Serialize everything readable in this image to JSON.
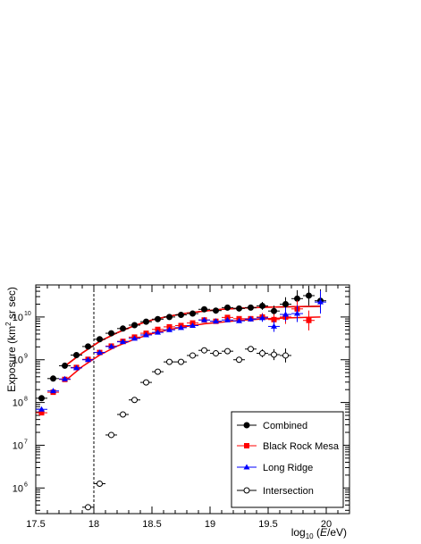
{
  "chart_data": {
    "type": "scatter",
    "title": "",
    "xlabel": "log10 (E/eV)",
    "ylabel": "Exposure (km2 sr sec)",
    "xlim": [
      17.5,
      20.2
    ],
    "ylim_log10": [
      5.4,
      10.75
    ],
    "y_scale": "log",
    "x_ticks": [
      17.5,
      18,
      18.5,
      19,
      19.5,
      20
    ],
    "x_tick_labels": [
      "17.5",
      "18",
      "18.5",
      "19",
      "19.5",
      "20"
    ],
    "y_ticks_exp": [
      6,
      7,
      8,
      9,
      10
    ],
    "y_tick_bases": [
      "10",
      "10",
      "10",
      "10",
      "10"
    ],
    "y_tick_exps": [
      "6",
      "7",
      "8",
      "9",
      "10"
    ],
    "reference_line_x": 18.0,
    "legend_placement": "bottom-right",
    "series": [
      {
        "name": "Combined",
        "color": "#000000",
        "marker": "circle-filled",
        "log10_values": [
          [
            17.55,
            8.1
          ],
          [
            17.65,
            8.56
          ],
          [
            17.75,
            8.86
          ],
          [
            17.85,
            9.11
          ],
          [
            17.95,
            9.31
          ],
          [
            18.05,
            9.48
          ],
          [
            18.15,
            9.62
          ],
          [
            18.25,
            9.73
          ],
          [
            18.35,
            9.81
          ],
          [
            18.45,
            9.89
          ],
          [
            18.55,
            9.95
          ],
          [
            18.65,
            10.0
          ],
          [
            18.75,
            10.05
          ],
          [
            18.85,
            10.08
          ],
          [
            18.95,
            10.18
          ],
          [
            19.05,
            10.15
          ],
          [
            19.15,
            10.22
          ],
          [
            19.25,
            10.2
          ],
          [
            19.35,
            10.22
          ],
          [
            19.45,
            10.26
          ],
          [
            19.55,
            10.14
          ],
          [
            19.65,
            10.3
          ],
          [
            19.75,
            10.43
          ],
          [
            19.85,
            10.5
          ],
          [
            19.95,
            10.38
          ]
        ]
      },
      {
        "name": "Black Rock Mesa",
        "color": "#ff0000",
        "marker": "square-filled",
        "log10_values": [
          [
            17.55,
            7.76
          ],
          [
            17.65,
            8.24
          ],
          [
            17.75,
            8.54
          ],
          [
            17.85,
            8.82
          ],
          [
            17.95,
            9.01
          ],
          [
            18.05,
            9.17
          ],
          [
            18.15,
            9.32
          ],
          [
            18.25,
            9.43
          ],
          [
            18.35,
            9.53
          ],
          [
            18.45,
            9.62
          ],
          [
            18.55,
            9.71
          ],
          [
            18.65,
            9.77
          ],
          [
            18.75,
            9.8
          ],
          [
            18.85,
            9.86
          ],
          [
            18.95,
            9.93
          ],
          [
            19.05,
            9.9
          ],
          [
            19.15,
            9.99
          ],
          [
            19.25,
            9.96
          ],
          [
            19.35,
            9.96
          ],
          [
            19.45,
            10.0
          ],
          [
            19.55,
            9.94
          ],
          [
            19.65,
            10.0
          ],
          [
            19.75,
            10.19
          ],
          [
            19.85,
            9.92
          ]
        ]
      },
      {
        "name": "Long Ridge",
        "color": "#0000ff",
        "marker": "triangle-filled",
        "log10_values": [
          [
            17.55,
            7.84
          ],
          [
            17.65,
            8.27
          ],
          [
            17.75,
            8.55
          ],
          [
            17.85,
            8.81
          ],
          [
            17.95,
            9.0
          ],
          [
            18.05,
            9.17
          ],
          [
            18.15,
            9.31
          ],
          [
            18.25,
            9.42
          ],
          [
            18.35,
            9.5
          ],
          [
            18.45,
            9.58
          ],
          [
            18.55,
            9.64
          ],
          [
            18.65,
            9.7
          ],
          [
            18.75,
            9.75
          ],
          [
            18.85,
            9.8
          ],
          [
            18.95,
            9.93
          ],
          [
            19.05,
            9.9
          ],
          [
            19.15,
            9.93
          ],
          [
            19.25,
            9.91
          ],
          [
            19.35,
            9.95
          ],
          [
            19.45,
            9.98
          ],
          [
            19.55,
            9.78
          ],
          [
            19.65,
            10.06
          ],
          [
            19.75,
            10.08
          ],
          [
            19.95,
            10.35
          ]
        ]
      },
      {
        "name": "Intersection",
        "color": "#000000",
        "marker": "circle-open",
        "log10_values": [
          [
            17.95,
            5.55
          ],
          [
            18.05,
            6.1
          ],
          [
            18.15,
            7.24
          ],
          [
            18.25,
            7.72
          ],
          [
            18.35,
            8.06
          ],
          [
            18.45,
            8.47
          ],
          [
            18.55,
            8.72
          ],
          [
            18.65,
            8.95
          ],
          [
            18.75,
            8.95
          ],
          [
            18.85,
            9.1
          ],
          [
            18.95,
            9.22
          ],
          [
            19.05,
            9.15
          ],
          [
            19.15,
            9.2
          ],
          [
            19.25,
            9.0
          ],
          [
            19.35,
            9.25
          ],
          [
            19.45,
            9.15
          ],
          [
            19.55,
            9.12
          ],
          [
            19.65,
            9.1
          ]
        ]
      }
    ],
    "fits": [
      {
        "series": "Combined",
        "color": "#000000",
        "log10_values": [
          [
            17.75,
            8.85
          ],
          [
            17.9,
            9.16
          ],
          [
            18.05,
            9.43
          ],
          [
            18.2,
            9.63
          ],
          [
            18.35,
            9.8
          ],
          [
            18.5,
            9.93
          ],
          [
            18.65,
            10.02
          ],
          [
            18.8,
            10.09
          ],
          [
            18.95,
            10.14
          ],
          [
            19.1,
            10.18
          ],
          [
            19.3,
            10.21
          ],
          [
            19.5,
            10.23
          ],
          [
            19.7,
            10.24
          ],
          [
            19.95,
            10.25
          ]
        ]
      },
      {
        "series": "Black Rock Mesa",
        "color": "#ff0000",
        "log10_values": [
          [
            17.75,
            8.85
          ],
          [
            17.9,
            9.16
          ],
          [
            18.05,
            9.43
          ],
          [
            18.2,
            9.63
          ],
          [
            18.35,
            9.8
          ],
          [
            18.5,
            9.93
          ],
          [
            18.65,
            10.02
          ],
          [
            18.8,
            10.09
          ],
          [
            18.95,
            10.14
          ],
          [
            19.1,
            10.18
          ],
          [
            19.3,
            10.21
          ],
          [
            19.5,
            10.23
          ],
          [
            19.7,
            10.24
          ],
          [
            19.95,
            10.25
          ]
        ]
      },
      {
        "series": "Black Rock Mesa",
        "color": "#ff0000",
        "log10_values": [
          [
            17.75,
            8.5
          ],
          [
            17.9,
            8.84
          ],
          [
            18.05,
            9.11
          ],
          [
            18.2,
            9.32
          ],
          [
            18.35,
            9.48
          ],
          [
            18.5,
            9.61
          ],
          [
            18.65,
            9.71
          ],
          [
            18.8,
            9.78
          ],
          [
            18.95,
            9.84
          ],
          [
            19.1,
            9.88
          ],
          [
            19.3,
            9.93
          ],
          [
            19.5,
            9.96
          ],
          [
            19.7,
            9.98
          ],
          [
            19.95,
            10.0
          ]
        ]
      }
    ]
  }
}
